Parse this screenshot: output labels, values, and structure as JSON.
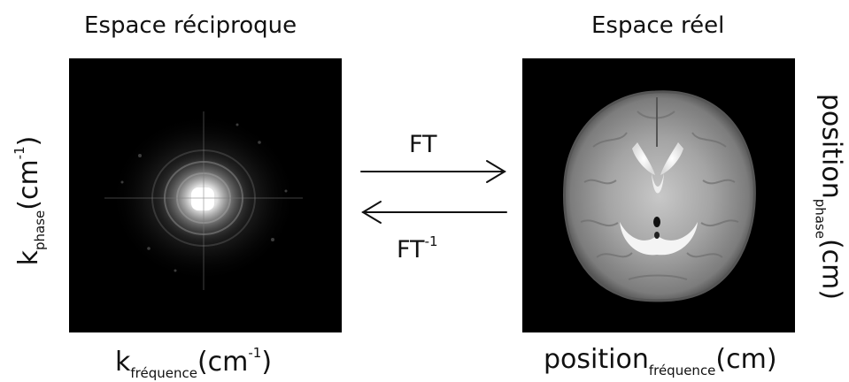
{
  "left": {
    "title": "Espace réciproque",
    "xlabel": {
      "main": "k",
      "sub": "fréquence",
      "open": "(cm",
      "sup": "-1",
      "close": ")"
    },
    "ylabel": {
      "main": "k",
      "sub": "phase",
      "open": "(cm",
      "sup": "-1",
      "close": ")"
    }
  },
  "right": {
    "title": "Espace réel",
    "xlabel": {
      "main": "position",
      "sub": "fréquence",
      "tail": "(cm)"
    },
    "ylabel": {
      "main": "position",
      "sub": "phase",
      "tail": "(cm)"
    }
  },
  "arrows": {
    "forward": {
      "label": "FT"
    },
    "backward": {
      "label": "FT",
      "sup": "-1"
    }
  }
}
